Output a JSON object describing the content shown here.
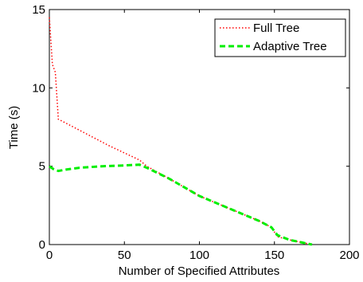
{
  "chart_data": {
    "type": "line",
    "title": "",
    "xlabel": "Number of Specified Attributes",
    "ylabel": "Time (s)",
    "xlim": [
      0,
      200
    ],
    "ylim": [
      0,
      15
    ],
    "xticks": [
      0,
      50,
      100,
      150,
      200
    ],
    "yticks": [
      0,
      5,
      10,
      15
    ],
    "grid": false,
    "legend_position": "top-right",
    "series": [
      {
        "name": "Full Tree",
        "color": "#ff0000",
        "style": "dotted",
        "x": [
          0,
          2,
          4,
          6,
          8,
          20,
          40,
          60,
          65,
          80,
          100,
          120,
          140,
          148,
          152,
          160,
          175
        ],
        "y": [
          14.5,
          11.5,
          11.0,
          8.0,
          7.9,
          7.3,
          6.3,
          5.4,
          5.0,
          4.2,
          3.1,
          2.3,
          1.5,
          1.1,
          0.5,
          0.3,
          0.0
        ]
      },
      {
        "name": "Adaptive Tree",
        "color": "#00ee00",
        "style": "dashed",
        "x": [
          0,
          3,
          6,
          12,
          20,
          35,
          50,
          60,
          65,
          80,
          100,
          120,
          140,
          148,
          152,
          160,
          175
        ],
        "y": [
          5.0,
          4.8,
          4.7,
          4.8,
          4.9,
          5.0,
          5.05,
          5.1,
          4.9,
          4.2,
          3.1,
          2.3,
          1.5,
          1.1,
          0.6,
          0.3,
          0.0
        ]
      }
    ]
  }
}
